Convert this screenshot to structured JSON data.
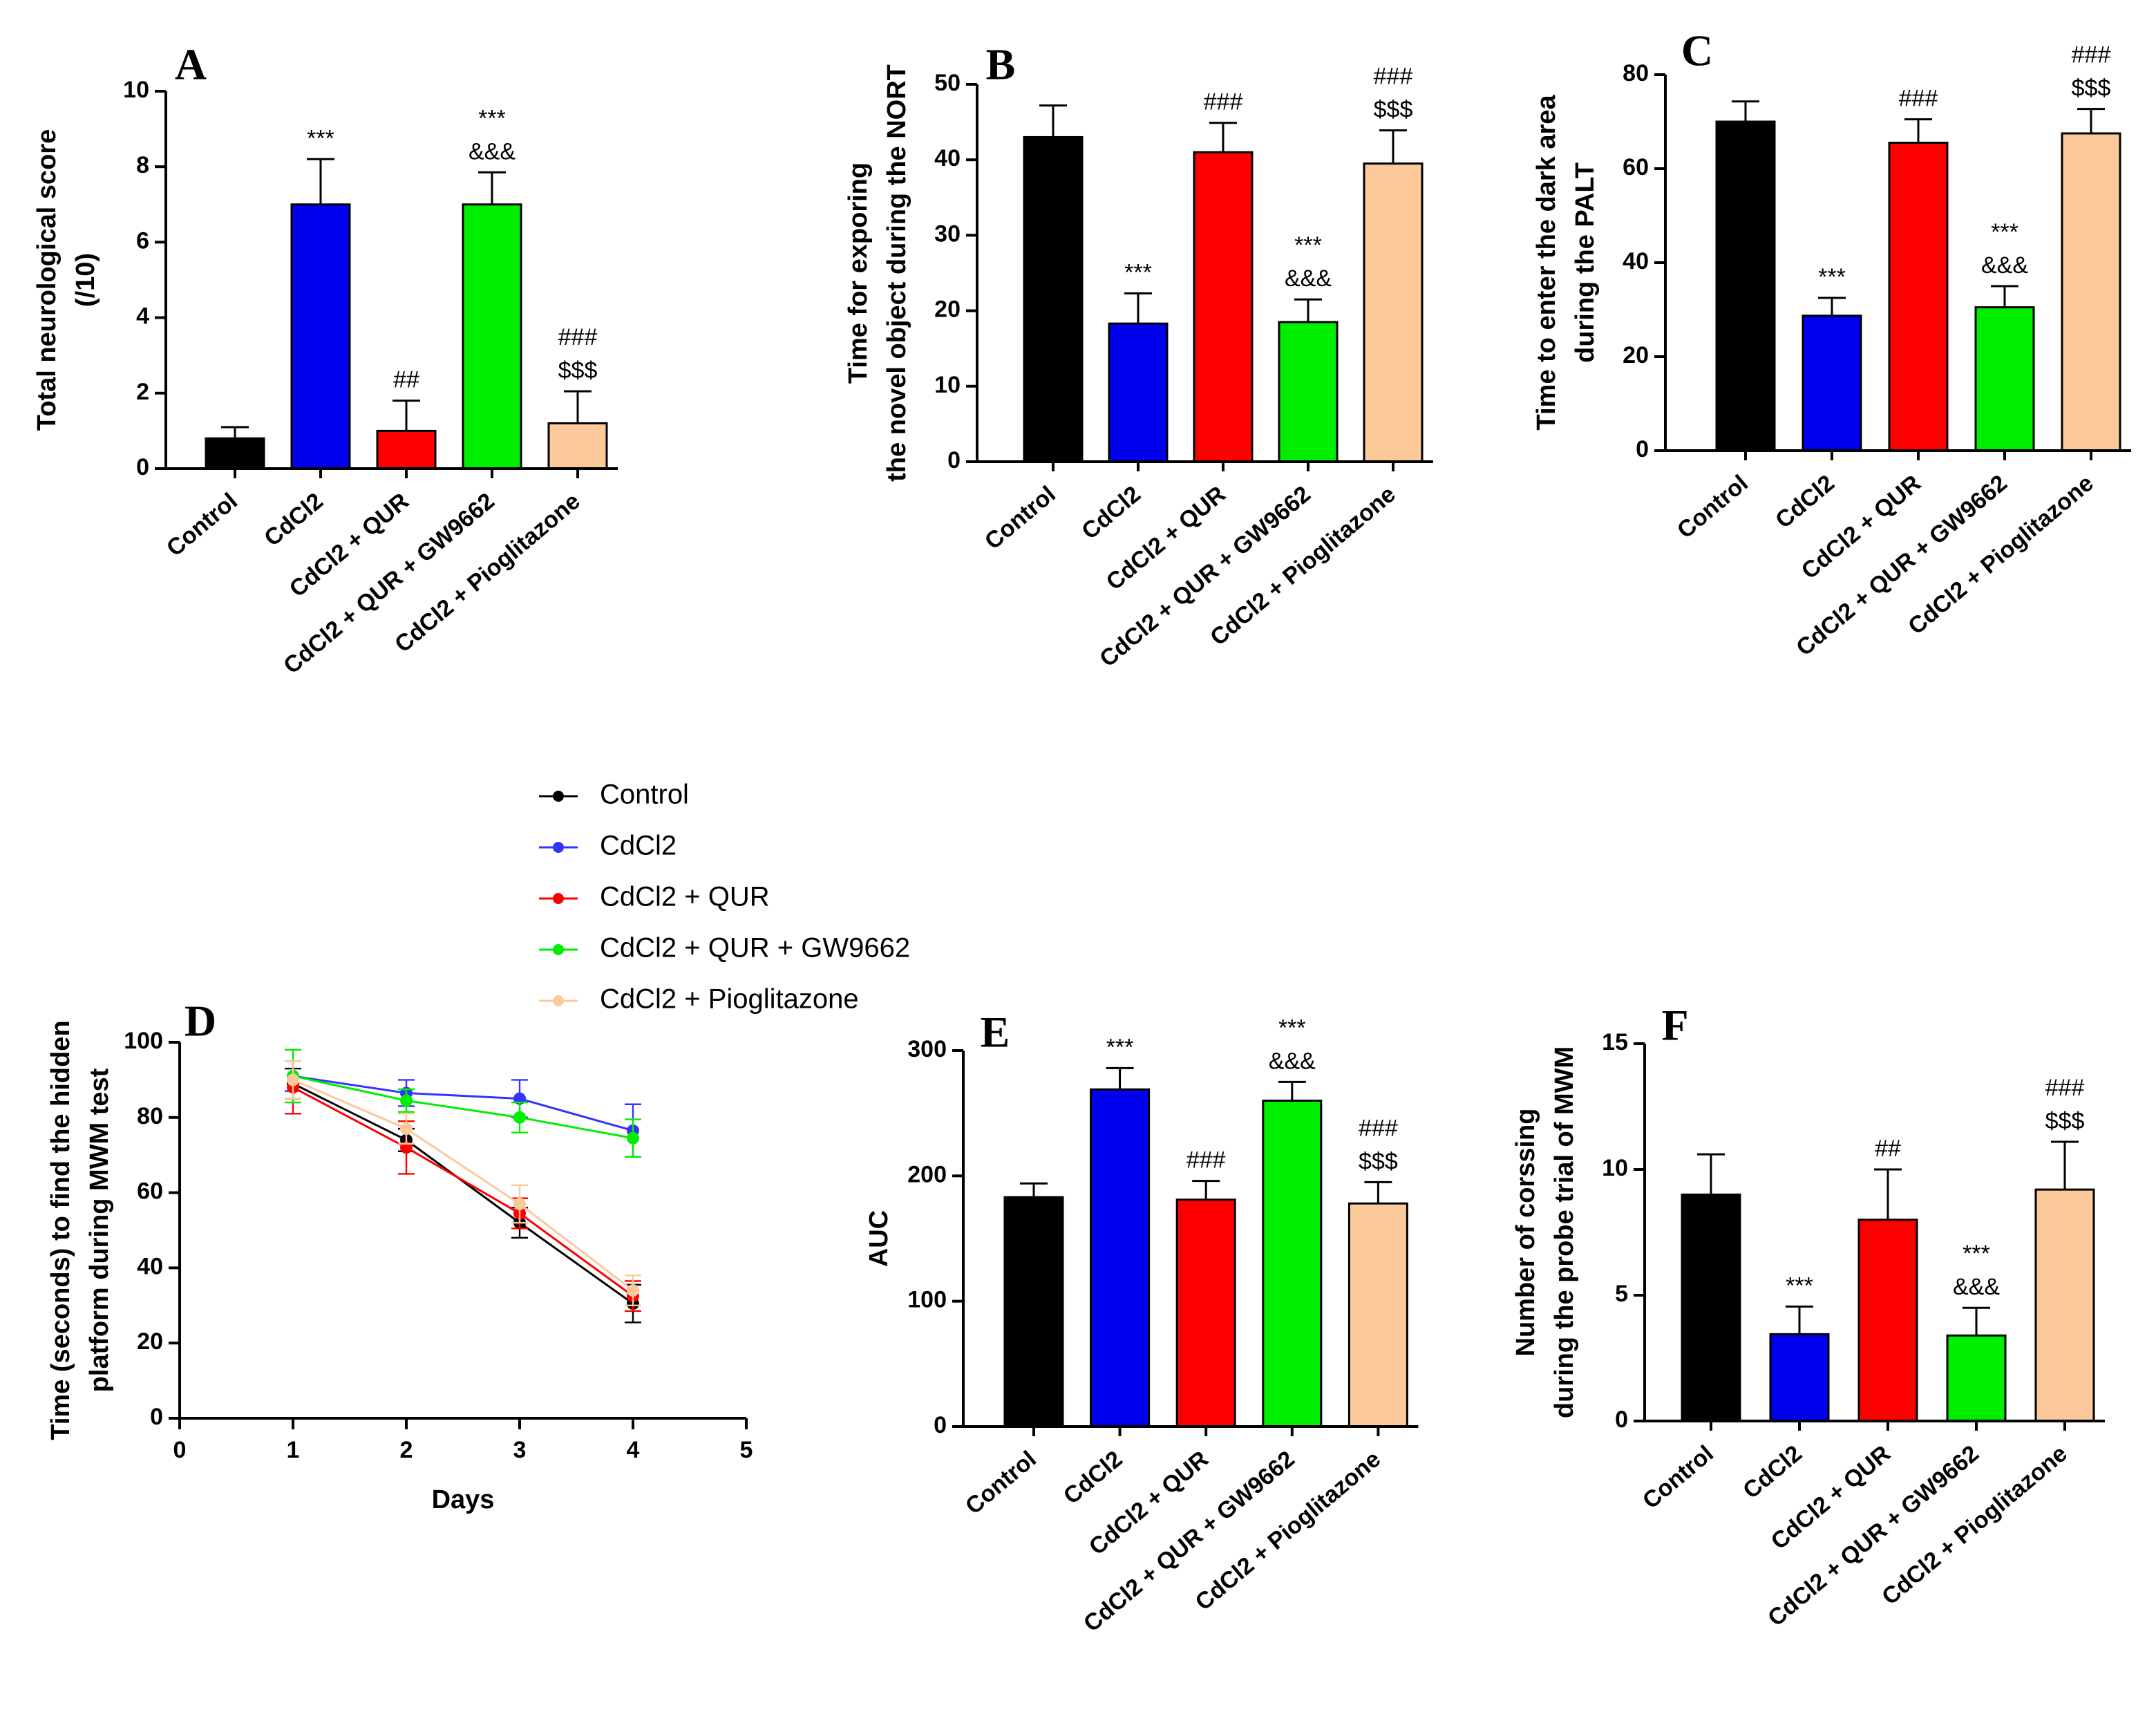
{
  "chart_data": [
    {
      "type": "bar",
      "panel": "A",
      "ylabel": [
        "Total neurological score",
        "(/10)"
      ],
      "categories": [
        "Control",
        "CdCl2",
        "CdCl2 + QUR",
        "CdCl2 + QUR + GW9662",
        "CdCl2 +  Pioglitazone"
      ],
      "values": [
        0.8,
        7,
        1,
        7,
        1.2
      ],
      "errors": [
        0.3,
        1.2,
        0.8,
        0.85,
        0.85
      ],
      "annotations": [
        [],
        [
          "***"
        ],
        [
          "##"
        ],
        [
          "***",
          "&&&"
        ],
        [
          "###",
          "$$$"
        ]
      ],
      "colors": [
        "#000000",
        "#0000ee",
        "#ff0000",
        "#00ee00",
        "#fcc99a"
      ],
      "ylim": [
        0,
        10
      ],
      "yticks": [
        0,
        2,
        4,
        6,
        8,
        10
      ]
    },
    {
      "type": "bar",
      "panel": "B",
      "ylabel": [
        "Time for exporing",
        "the novel object during the NORT"
      ],
      "categories": [
        "Control",
        "CdCl2",
        "CdCl2 + QUR",
        "CdCl2 + QUR + GW9662",
        "CdCl2 + Pioglitazone"
      ],
      "values": [
        43,
        18.3,
        41,
        18.5,
        39.5
      ],
      "errors": [
        4.2,
        4,
        3.9,
        3,
        4.4
      ],
      "annotations": [
        [],
        [
          "***"
        ],
        [
          "###"
        ],
        [
          "***",
          "&&&"
        ],
        [
          "###",
          "$$$"
        ]
      ],
      "colors": [
        "#000000",
        "#0000ee",
        "#ff0000",
        "#00ee00",
        "#fcc99a"
      ],
      "ylim": [
        0,
        50
      ],
      "yticks": [
        0,
        10,
        20,
        30,
        40,
        50
      ]
    },
    {
      "type": "bar",
      "panel": "C",
      "ylabel": [
        "Time to enter the dark area",
        "during the PALT"
      ],
      "categories": [
        "Control",
        "CdCl2",
        "CdCl2 + QUR",
        "CdCl2 + QUR + GW9662",
        "CdCl2 + Pioglitazone"
      ],
      "values": [
        70,
        28.7,
        65.5,
        30.5,
        67.5
      ],
      "errors": [
        4.3,
        3.8,
        5,
        4.5,
        5.2
      ],
      "annotations": [
        [],
        [
          "***"
        ],
        [
          "###"
        ],
        [
          "***",
          "&&&"
        ],
        [
          "###",
          "$$$"
        ]
      ],
      "colors": [
        "#000000",
        "#0000ee",
        "#ff0000",
        "#00ee00",
        "#fcc99a"
      ],
      "ylim": [
        0,
        80
      ],
      "yticks": [
        0,
        20,
        40,
        60,
        80
      ]
    },
    {
      "type": "line",
      "panel": "D",
      "ylabel": [
        "Time (seconds) to find the hidden",
        "platform during MWM test"
      ],
      "xlabel": "Days",
      "x": [
        1,
        2,
        3,
        4
      ],
      "series": [
        {
          "name": "Control",
          "color": "#000000",
          "values": [
            89,
            74,
            52,
            30.5
          ],
          "errors": [
            4,
            3,
            4,
            5
          ]
        },
        {
          "name": "CdCl2",
          "color": "#3333ff",
          "values": [
            91,
            86.5,
            85,
            76.5
          ],
          "errors": [
            4,
            3.5,
            5,
            7
          ]
        },
        {
          "name": "CdCl2 + QUR",
          "color": "#ff0000",
          "values": [
            88,
            72,
            54.5,
            32.5
          ],
          "errors": [
            7,
            7,
            4,
            4
          ]
        },
        {
          "name": "CdCl2 + QUR + GW9662",
          "color": "#00ee00",
          "values": [
            91,
            84.5,
            80,
            74.5
          ],
          "errors": [
            7,
            3,
            4,
            5
          ]
        },
        {
          "name": "CdCl2 + Pioglitazone",
          "color": "#fcc99a",
          "values": [
            90,
            77,
            57,
            34
          ],
          "errors": [
            5,
            4,
            5,
            4
          ]
        }
      ],
      "xlim": [
        0,
        5
      ],
      "xticks": [
        0,
        1,
        2,
        3,
        4,
        5
      ],
      "ylim": [
        0,
        100
      ],
      "yticks": [
        0,
        20,
        40,
        60,
        80,
        100
      ]
    },
    {
      "type": "bar",
      "panel": "E",
      "ylabel": [
        "AUC"
      ],
      "categories": [
        "Control",
        "CdCl2",
        "CdCl2 + QUR",
        "CdCl2 + QUR + GW9662",
        "CdCl2 + Pioglitazone"
      ],
      "values": [
        183,
        269,
        181,
        260,
        178
      ],
      "errors": [
        11,
        17,
        15,
        15,
        17
      ],
      "annotations": [
        [],
        [
          "***"
        ],
        [
          "###"
        ],
        [
          "***",
          "&&&"
        ],
        [
          "###",
          "$$$"
        ]
      ],
      "colors": [
        "#000000",
        "#0000ee",
        "#ff0000",
        "#00ee00",
        "#fcc99a"
      ],
      "ylim": [
        0,
        300
      ],
      "yticks": [
        0,
        100,
        200,
        300
      ]
    },
    {
      "type": "bar",
      "panel": "F",
      "ylabel": [
        "Number of corssing",
        "during the probe trial of MWM"
      ],
      "categories": [
        "Control",
        "CdCl2",
        "CdCl2 + QUR",
        "CdCl2 + QUR + GW9662",
        "CdCl2 +  Pioglitazone"
      ],
      "values": [
        9,
        3.45,
        8,
        3.4,
        9.2
      ],
      "errors": [
        1.6,
        1.1,
        2,
        1.1,
        1.9
      ],
      "annotations": [
        [],
        [
          "***"
        ],
        [
          "##"
        ],
        [
          "***",
          "&&&"
        ],
        [
          "###",
          "$$$"
        ]
      ],
      "colors": [
        "#000000",
        "#0000ee",
        "#ff0000",
        "#00ee00",
        "#fcc99a"
      ],
      "ylim": [
        0,
        15
      ],
      "yticks": [
        0,
        5,
        10,
        15
      ]
    }
  ]
}
